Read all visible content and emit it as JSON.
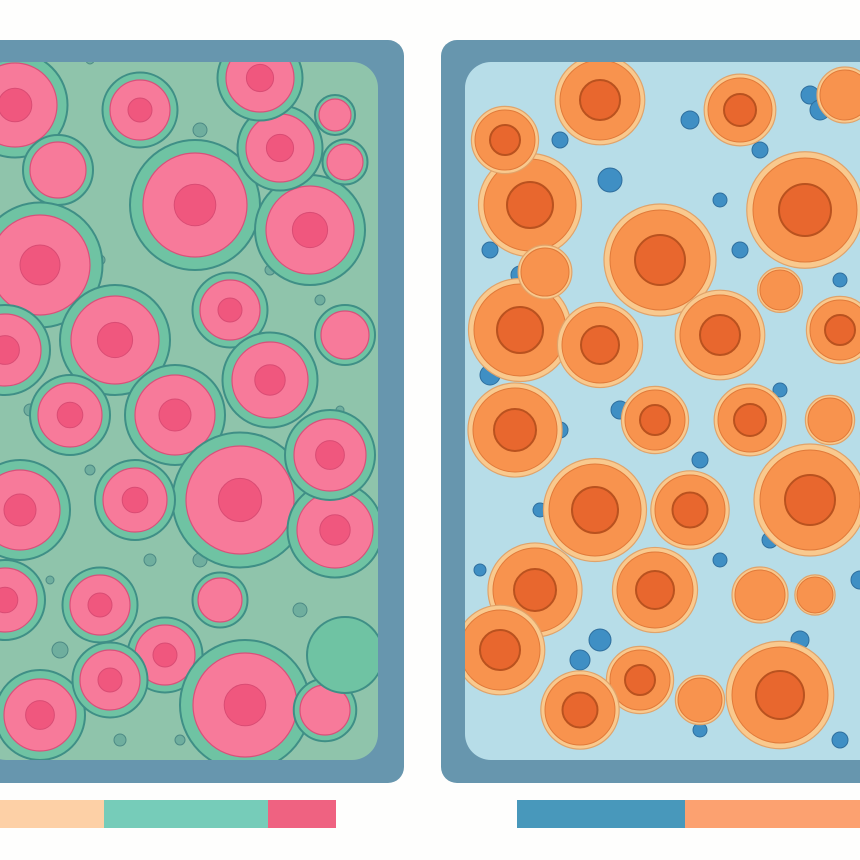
{
  "colors": {
    "background": "#fefefd",
    "frame": "#6796ae",
    "left_medium": "#8fc4ab",
    "left_cell_halo": "#6fc3a3",
    "left_cell_body": "#f77a9a",
    "left_nucleus": "#f0577e",
    "right_medium": "#b7dde8",
    "right_cell_halo": "#f9c98e",
    "right_cell_body": "#f8934e",
    "right_nucleus": "#e8672e",
    "blue_dot": "#3f8fc4"
  },
  "legend_bars": {
    "left": [
      {
        "color": "#fdd0a6"
      },
      {
        "color": "#76ccb9"
      },
      {
        "color": "#ef6281"
      }
    ],
    "right": [
      {
        "color": "#4898bb"
      },
      {
        "color": "#fca170"
      }
    ]
  }
}
